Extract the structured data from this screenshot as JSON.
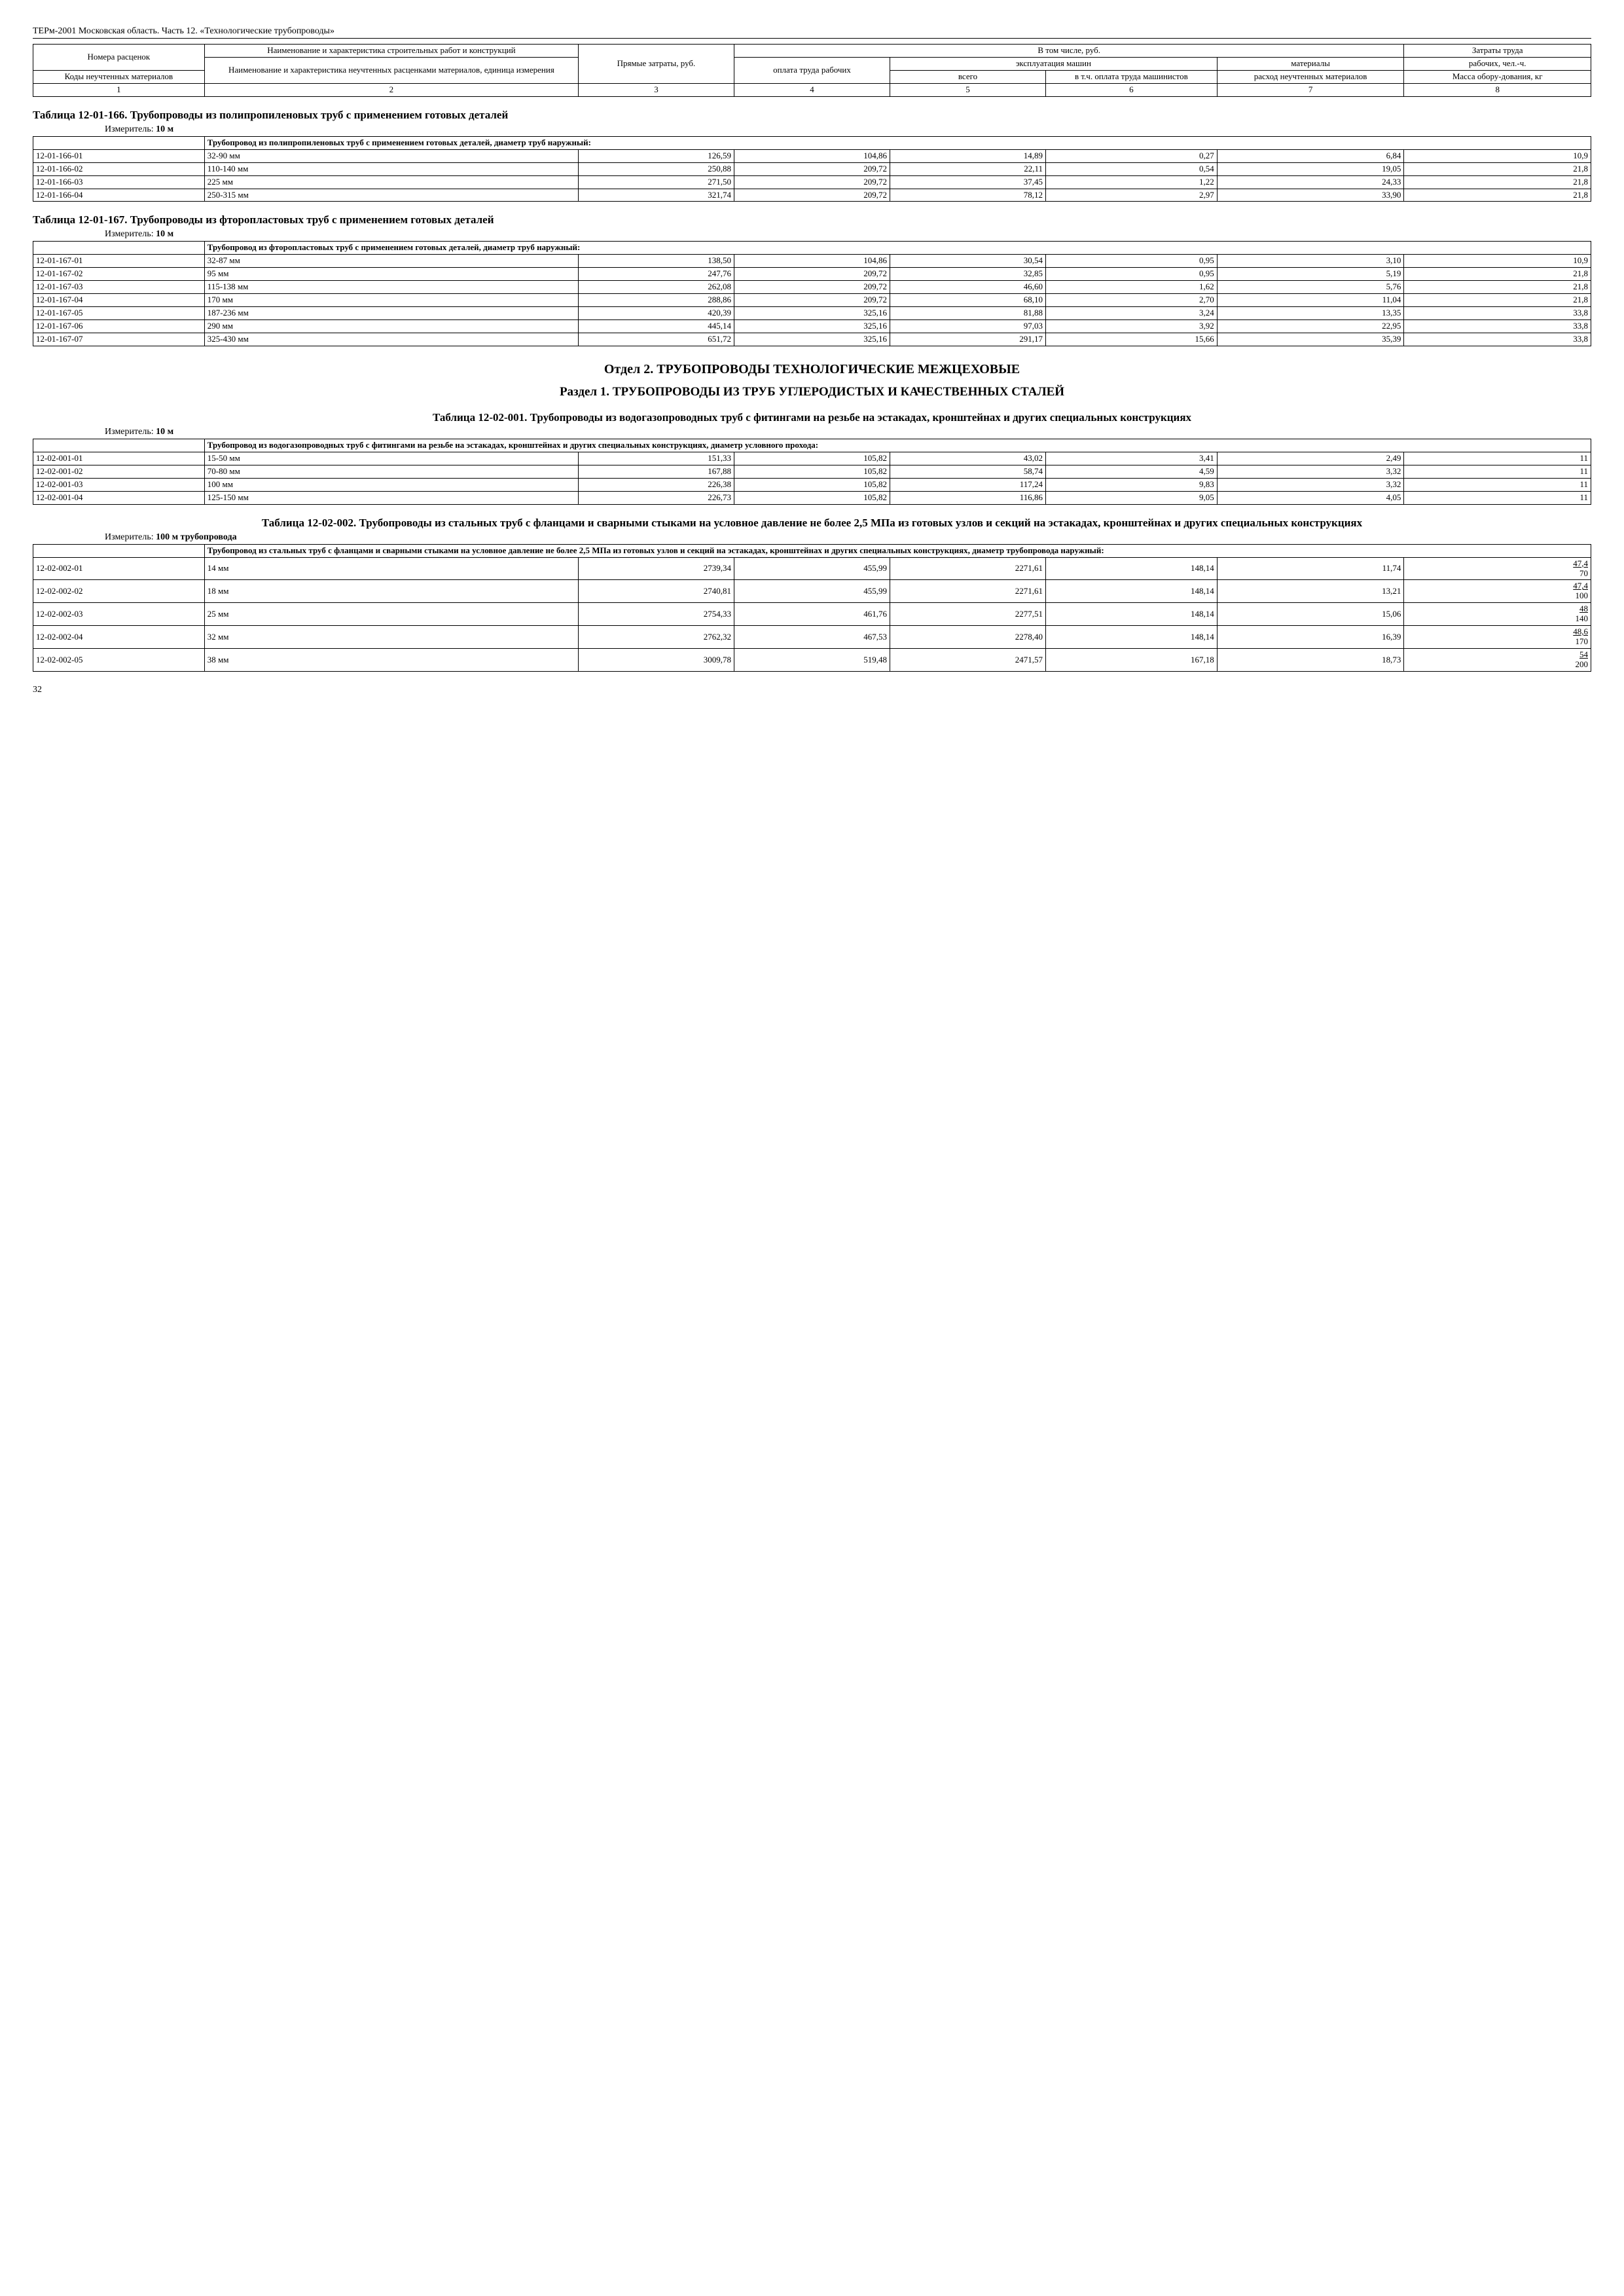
{
  "docHeader": "ТЕРм-2001 Московская область. Часть 12. «Технологические трубопроводы»",
  "pageNumber": "32",
  "headerTable": {
    "h1": "Номера расценок",
    "h2": "Наименование и характеристика строительных работ и конструкций",
    "h3": "Прямые затраты, руб.",
    "h4": "В том числе, руб.",
    "h5": "Затраты труда",
    "h6": "Коды неучтенных материалов",
    "h7": "Наименование и характеристика неучтенных расценками материалов, единица измерения",
    "h8": "оплата труда рабочих",
    "h9": "эксплуатация машин",
    "h10": "материалы",
    "h11": "всего",
    "h12": "в т.ч. оплата труда машинистов",
    "h13": "расход неучтенных материалов",
    "h14": "рабочих, чел.-ч.",
    "h15": "Масса обору-дования, кг",
    "n1": "1",
    "n2": "2",
    "n3": "3",
    "n4": "4",
    "n5": "5",
    "n6": "6",
    "n7": "7",
    "n8": "8"
  },
  "t166": {
    "title": "Таблица 12-01-166. Трубопроводы из полипропиленовых труб с применением готовых деталей",
    "measurer": "Измеритель: ",
    "measurerBold": "10 м",
    "sub": "Трубопровод из полипропиленовых труб с применением готовых деталей, диаметр труб наружный:",
    "rows": [
      {
        "code": "12-01-166-01",
        "name": "32-90 мм",
        "c3": "126,59",
        "c4": "104,86",
        "c5": "14,89",
        "c6": "0,27",
        "c7": "6,84",
        "c8": "10,9"
      },
      {
        "code": "12-01-166-02",
        "name": "110-140 мм",
        "c3": "250,88",
        "c4": "209,72",
        "c5": "22,11",
        "c6": "0,54",
        "c7": "19,05",
        "c8": "21,8"
      },
      {
        "code": "12-01-166-03",
        "name": "225 мм",
        "c3": "271,50",
        "c4": "209,72",
        "c5": "37,45",
        "c6": "1,22",
        "c7": "24,33",
        "c8": "21,8"
      },
      {
        "code": "12-01-166-04",
        "name": "250-315 мм",
        "c3": "321,74",
        "c4": "209,72",
        "c5": "78,12",
        "c6": "2,97",
        "c7": "33,90",
        "c8": "21,8"
      }
    ]
  },
  "t167": {
    "title": "Таблица 12-01-167. Трубопроводы из фторопластовых труб с применением готовых деталей",
    "measurer": "Измеритель: ",
    "measurerBold": "10 м",
    "sub": "Трубопровод из фторопластовых труб с применением готовых деталей, диаметр труб наружный:",
    "rows": [
      {
        "code": "12-01-167-01",
        "name": "32-87 мм",
        "c3": "138,50",
        "c4": "104,86",
        "c5": "30,54",
        "c6": "0,95",
        "c7": "3,10",
        "c8": "10,9"
      },
      {
        "code": "12-01-167-02",
        "name": "95 мм",
        "c3": "247,76",
        "c4": "209,72",
        "c5": "32,85",
        "c6": "0,95",
        "c7": "5,19",
        "c8": "21,8"
      },
      {
        "code": "12-01-167-03",
        "name": "115-138 мм",
        "c3": "262,08",
        "c4": "209,72",
        "c5": "46,60",
        "c6": "1,62",
        "c7": "5,76",
        "c8": "21,8"
      },
      {
        "code": "12-01-167-04",
        "name": "170 мм",
        "c3": "288,86",
        "c4": "209,72",
        "c5": "68,10",
        "c6": "2,70",
        "c7": "11,04",
        "c8": "21,8"
      },
      {
        "code": "12-01-167-05",
        "name": "187-236 мм",
        "c3": "420,39",
        "c4": "325,16",
        "c5": "81,88",
        "c6": "3,24",
        "c7": "13,35",
        "c8": "33,8"
      },
      {
        "code": "12-01-167-06",
        "name": "290 мм",
        "c3": "445,14",
        "c4": "325,16",
        "c5": "97,03",
        "c6": "3,92",
        "c7": "22,95",
        "c8": "33,8"
      },
      {
        "code": "12-01-167-07",
        "name": "325-430 мм",
        "c3": "651,72",
        "c4": "325,16",
        "c5": "291,17",
        "c6": "15,66",
        "c7": "35,39",
        "c8": "33,8"
      }
    ]
  },
  "sectionA": "Отдел 2. ТРУБОПРОВОДЫ ТЕХНОЛОГИЧЕСКИЕ МЕЖЦЕХОВЫЕ",
  "sectionB": "Раздел 1. ТРУБОПРОВОДЫ ИЗ ТРУБ УГЛЕРОДИСТЫХ И КАЧЕСТВЕННЫХ СТАЛЕЙ",
  "t001": {
    "title": "Таблица 12-02-001. Трубопроводы из водогазопроводных труб с фитингами на резьбе на эстакадах, кронштейнах и других специальных конструкциях",
    "measurer": "Измеритель: ",
    "measurerBold": "10 м",
    "sub": "Трубопровод из водогазопроводных труб с фитингами на резьбе на эстакадах, кронштейнах и других специальных конструкциях, диаметр условного прохода:",
    "rows": [
      {
        "code": "12-02-001-01",
        "name": "15-50 мм",
        "c3": "151,33",
        "c4": "105,82",
        "c5": "43,02",
        "c6": "3,41",
        "c7": "2,49",
        "c8": "11"
      },
      {
        "code": "12-02-001-02",
        "name": "70-80 мм",
        "c3": "167,88",
        "c4": "105,82",
        "c5": "58,74",
        "c6": "4,59",
        "c7": "3,32",
        "c8": "11"
      },
      {
        "code": "12-02-001-03",
        "name": "100 мм",
        "c3": "226,38",
        "c4": "105,82",
        "c5": "117,24",
        "c6": "9,83",
        "c7": "3,32",
        "c8": "11"
      },
      {
        "code": "12-02-001-04",
        "name": "125-150 мм",
        "c3": "226,73",
        "c4": "105,82",
        "c5": "116,86",
        "c6": "9,05",
        "c7": "4,05",
        "c8": "11"
      }
    ]
  },
  "t002": {
    "title": "Таблица 12-02-002. Трубопроводы из стальных труб с фланцами и сварными стыками на условное давление не более 2,5 МПа из готовых узлов и секций на эстакадах, кронштейнах и других специальных конструкциях",
    "measurer": "Измеритель: ",
    "measurerBold": "100 м трубопровода",
    "sub": "Трубопровод из стальных труб с фланцами и сварными стыками на условное давление не более 2,5 МПа из готовых узлов и секций на эстакадах, кронштейнах и других специальных конструкциях, диаметр трубопровода наружный:",
    "rows": [
      {
        "code": "12-02-002-01",
        "name": "14 мм",
        "c3": "2739,34",
        "c4": "455,99",
        "c5": "2271,61",
        "c6": "148,14",
        "c7": "11,74",
        "c8a": "47,4",
        "c8b": "70"
      },
      {
        "code": "12-02-002-02",
        "name": "18 мм",
        "c3": "2740,81",
        "c4": "455,99",
        "c5": "2271,61",
        "c6": "148,14",
        "c7": "13,21",
        "c8a": "47,4",
        "c8b": "100"
      },
      {
        "code": "12-02-002-03",
        "name": "25 мм",
        "c3": "2754,33",
        "c4": "461,76",
        "c5": "2277,51",
        "c6": "148,14",
        "c7": "15,06",
        "c8a": "48",
        "c8b": "140"
      },
      {
        "code": "12-02-002-04",
        "name": "32 мм",
        "c3": "2762,32",
        "c4": "467,53",
        "c5": "2278,40",
        "c6": "148,14",
        "c7": "16,39",
        "c8a": "48,6",
        "c8b": "170"
      },
      {
        "code": "12-02-002-05",
        "name": "38 мм",
        "c3": "3009,78",
        "c4": "519,48",
        "c5": "2471,57",
        "c6": "167,18",
        "c7": "18,73",
        "c8a": "54",
        "c8b": "200"
      }
    ]
  }
}
